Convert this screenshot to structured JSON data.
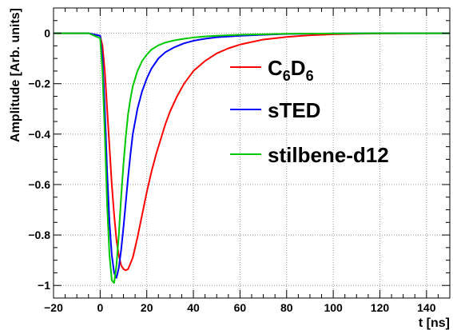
{
  "chart_data": {
    "type": "line",
    "title": "",
    "xlabel": "t [ns]",
    "ylabel": "Amplitude [Arb. units]",
    "xlim": [
      -20,
      150
    ],
    "ylim": [
      -1.05,
      0.1
    ],
    "x_ticks": [
      -20,
      0,
      20,
      40,
      60,
      80,
      100,
      120,
      140
    ],
    "x_tick_labels": [
      "−20",
      "0",
      "20",
      "40",
      "60",
      "80",
      "100",
      "120",
      "140"
    ],
    "y_ticks": [
      0,
      -0.2,
      -0.4,
      -0.6,
      -0.8,
      -1
    ],
    "y_tick_labels": [
      "0",
      "−0.2",
      "−0.4",
      "−0.6",
      "−0.8",
      "−1"
    ],
    "grid": true,
    "legend_position": "right",
    "series": [
      {
        "name": "C6D6",
        "label_main_1": "C",
        "label_sub_1": "6",
        "label_main_2": "D",
        "label_sub_2": "6",
        "color": "#ff0000",
        "x": [
          -20,
          -5,
          0,
          1,
          2,
          3,
          4,
          5,
          6,
          7,
          8,
          9,
          10,
          11,
          12,
          14,
          16,
          18,
          20,
          22,
          24,
          26,
          28,
          30,
          33,
          36,
          40,
          45,
          50,
          55,
          60,
          70,
          80,
          90,
          100,
          110,
          120,
          135,
          150
        ],
        "y": [
          0,
          0,
          -0.01,
          -0.05,
          -0.15,
          -0.3,
          -0.45,
          -0.6,
          -0.72,
          -0.82,
          -0.88,
          -0.92,
          -0.935,
          -0.94,
          -0.935,
          -0.89,
          -0.81,
          -0.72,
          -0.63,
          -0.55,
          -0.48,
          -0.42,
          -0.36,
          -0.31,
          -0.25,
          -0.2,
          -0.15,
          -0.11,
          -0.08,
          -0.06,
          -0.045,
          -0.025,
          -0.015,
          -0.008,
          -0.004,
          -0.002,
          -0.001,
          0,
          0
        ]
      },
      {
        "name": "sTED",
        "color": "#0000ff",
        "x": [
          -20,
          -5,
          0,
          1,
          2,
          3,
          4,
          5,
          6,
          7,
          8,
          9,
          10,
          11,
          12,
          13,
          14,
          16,
          18,
          20,
          22,
          25,
          28,
          32,
          36,
          40,
          45,
          50,
          60,
          70,
          80,
          100,
          120,
          150
        ],
        "y": [
          0,
          0,
          -0.01,
          -0.1,
          -0.3,
          -0.55,
          -0.75,
          -0.88,
          -0.95,
          -0.97,
          -0.93,
          -0.86,
          -0.77,
          -0.67,
          -0.57,
          -0.48,
          -0.4,
          -0.3,
          -0.23,
          -0.18,
          -0.14,
          -0.1,
          -0.075,
          -0.055,
          -0.04,
          -0.03,
          -0.022,
          -0.016,
          -0.01,
          -0.006,
          -0.003,
          -0.001,
          0,
          0
        ]
      },
      {
        "name": "stilbene-d12",
        "color": "#00c800",
        "x": [
          -20,
          -5,
          0,
          1,
          2,
          3,
          4,
          5,
          6,
          7,
          8,
          9,
          10,
          11,
          12,
          13,
          14,
          16,
          18,
          20,
          22,
          25,
          28,
          32,
          36,
          40,
          45,
          50,
          60,
          70,
          80,
          100,
          120,
          150
        ],
        "y": [
          0,
          0,
          -0.02,
          -0.15,
          -0.4,
          -0.68,
          -0.88,
          -0.98,
          -0.99,
          -0.92,
          -0.8,
          -0.65,
          -0.52,
          -0.41,
          -0.32,
          -0.26,
          -0.21,
          -0.15,
          -0.11,
          -0.085,
          -0.065,
          -0.048,
          -0.037,
          -0.028,
          -0.022,
          -0.017,
          -0.013,
          -0.01,
          -0.006,
          -0.004,
          -0.002,
          -0.001,
          0,
          0
        ]
      }
    ]
  }
}
